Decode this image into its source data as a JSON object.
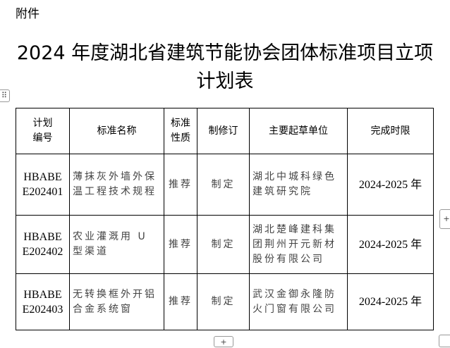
{
  "attachment_label": "附件",
  "title_line1": "2024 年度湖北省建筑节能协会团体标准项目立项",
  "title_line2": "计划表",
  "table": {
    "headers": [
      "计划\n编号",
      "标准名称",
      "标准\n性质",
      "制修订",
      "主要起草单位",
      "完成时限"
    ],
    "rows": [
      {
        "code": "HBABE E202401",
        "name": "薄抹灰外墙外保温工程技术规程",
        "nature": "推荐",
        "type": "制定",
        "unit": "湖北中城科绿色建筑研究院",
        "time": "2024-2025 年"
      },
      {
        "code": "HBABE E202402",
        "name": "农业灌溉用 U 型渠道",
        "nature": "推荐",
        "type": "制定",
        "unit": "湖北楚峰建科集团荆州开元新材股份有限公司",
        "time": "2024-2025 年"
      },
      {
        "code": "HBABE E202403",
        "name": "无转换框外开铝合金系统窗",
        "nature": "推荐",
        "type": "制定",
        "unit": "武汉金御永隆防火门窗有限公司",
        "time": "2024-2025 年"
      }
    ]
  }
}
